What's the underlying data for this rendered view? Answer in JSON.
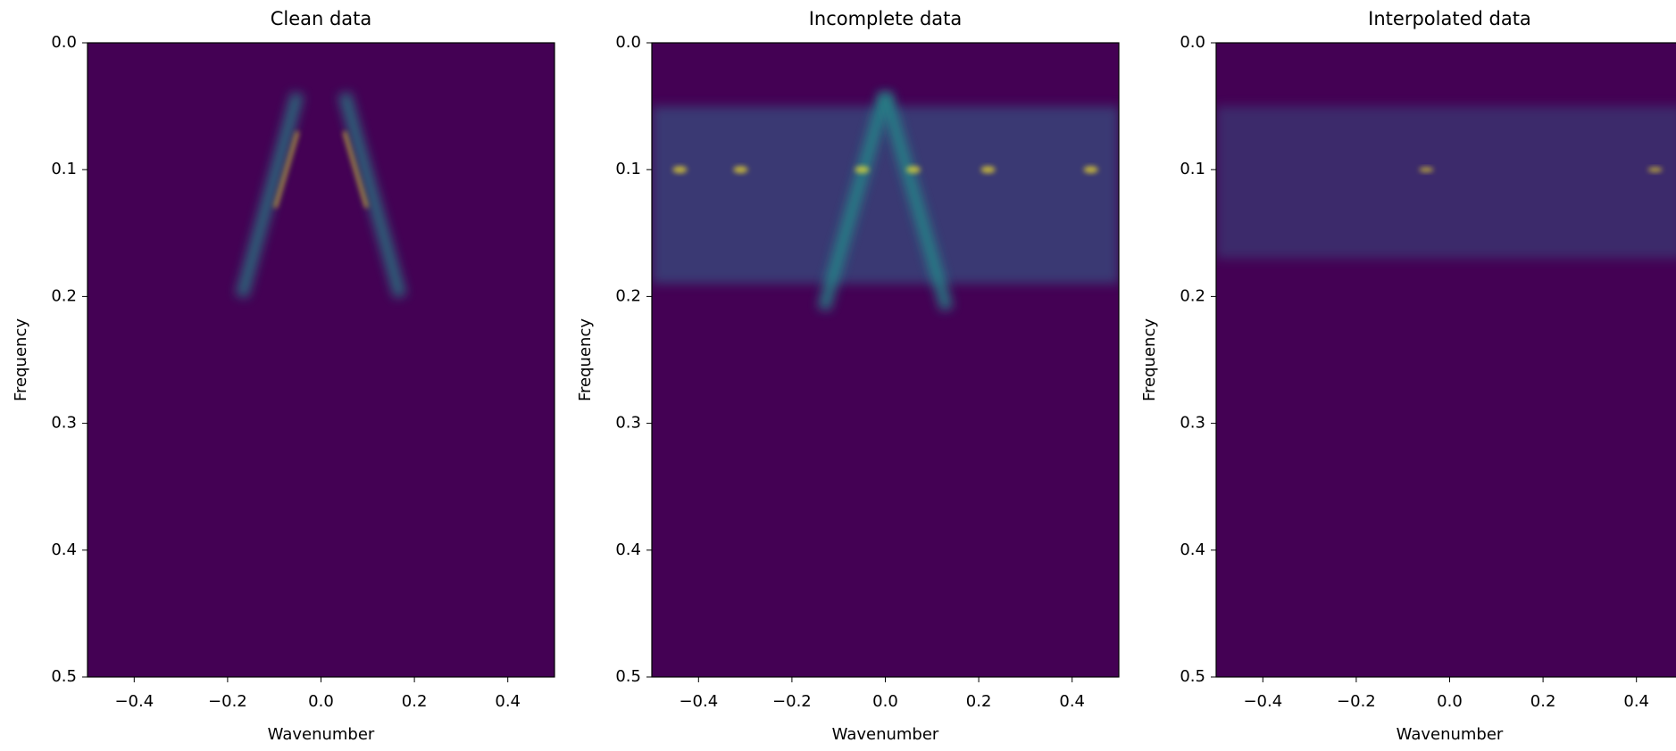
{
  "chart_data": [
    {
      "type": "heatmap",
      "title": "Clean data",
      "xlabel": "Wavenumber",
      "ylabel": "Frequency",
      "colormap": "viridis",
      "xlim": [
        -0.5,
        0.5
      ],
      "ylim": [
        0.5,
        0.0
      ],
      "xticks": [
        {
          "value": -0.4,
          "label": "−0.4"
        },
        {
          "value": -0.2,
          "label": "−0.2"
        },
        {
          "value": 0,
          "label": "0.0"
        },
        0.2,
        0.4
      ],
      "yticks": [
        {
          "value": 0,
          "label": "0.0"
        },
        0.1,
        0.2,
        0.3,
        0.4,
        0.5
      ]
    },
    {
      "type": "heatmap",
      "title": "Incomplete data",
      "xlabel": "Wavenumber",
      "ylabel": "Frequency",
      "colormap": "viridis",
      "xlim": [
        -0.5,
        0.5
      ],
      "ylim": [
        0.5,
        0.0
      ],
      "xticks": [
        {
          "value": -0.4,
          "label": "−0.4"
        },
        {
          "value": -0.2,
          "label": "−0.2"
        },
        {
          "value": 0,
          "label": "0.0"
        },
        0.2,
        0.4
      ],
      "yticks": [
        {
          "value": 0,
          "label": "0.0"
        },
        0.1,
        0.2,
        0.3,
        0.4,
        0.5
      ]
    },
    {
      "type": "heatmap",
      "title": "Interpolated data",
      "xlabel": "Wavenumber",
      "ylabel": "Frequency",
      "colormap": "viridis",
      "xlim": [
        -0.5,
        0.5
      ],
      "ylim": [
        0.5,
        0.0
      ],
      "xticks": [
        {
          "value": -0.4,
          "label": "−0.4"
        },
        {
          "value": -0.2,
          "label": "−0.2"
        },
        {
          "value": 0,
          "label": "0.0"
        },
        0.2,
        0.4
      ],
      "yticks": [
        {
          "value": 0,
          "label": "0.0"
        },
        0.1,
        0.2,
        0.3,
        0.4,
        0.5
      ]
    }
  ]
}
